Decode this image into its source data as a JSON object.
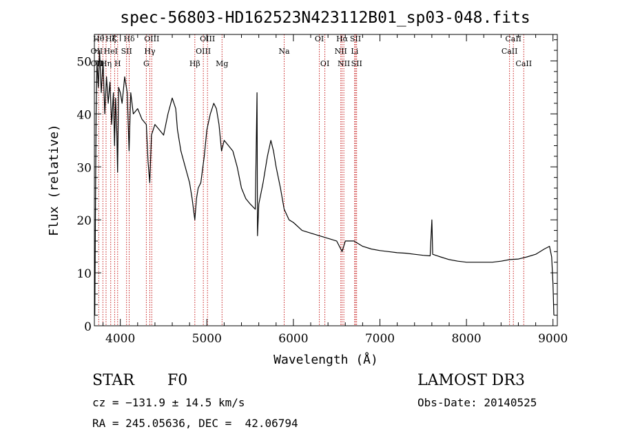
{
  "chart_data": {
    "type": "line",
    "title": "spec-56803-HD162523N423112B01_sp03-048.fits",
    "xlabel": "Wavelength (Å)",
    "ylabel": "Flux (relative)",
    "xlim": [
      3700,
      9050
    ],
    "ylim": [
      0,
      55
    ],
    "xticks": [
      4000,
      5000,
      6000,
      7000,
      8000,
      9000
    ],
    "yticks": [
      0,
      10,
      20,
      30,
      40,
      50
    ],
    "grid": false,
    "series": [
      {
        "points": [
          [
            3705,
            2
          ],
          [
            3712,
            20
          ],
          [
            3720,
            40
          ],
          [
            3730,
            50
          ],
          [
            3745,
            45
          ],
          [
            3760,
            52
          ],
          [
            3780,
            44
          ],
          [
            3800,
            50
          ],
          [
            3820,
            40
          ],
          [
            3840,
            47
          ],
          [
            3860,
            42
          ],
          [
            3880,
            46
          ],
          [
            3900,
            38
          ],
          [
            3920,
            44
          ],
          [
            3933,
            34
          ],
          [
            3945,
            43
          ],
          [
            3960,
            36
          ],
          [
            3968,
            29
          ],
          [
            3980,
            45
          ],
          [
            4000,
            44
          ],
          [
            4020,
            42
          ],
          [
            4050,
            47
          ],
          [
            4080,
            44
          ],
          [
            4101,
            33
          ],
          [
            4120,
            44
          ],
          [
            4150,
            40
          ],
          [
            4200,
            41
          ],
          [
            4250,
            39
          ],
          [
            4300,
            38
          ],
          [
            4320,
            31
          ],
          [
            4340,
            27
          ],
          [
            4360,
            36
          ],
          [
            4400,
            38
          ],
          [
            4450,
            37
          ],
          [
            4500,
            36
          ],
          [
            4550,
            40
          ],
          [
            4600,
            43
          ],
          [
            4640,
            41
          ],
          [
            4660,
            37
          ],
          [
            4700,
            33
          ],
          [
            4750,
            30
          ],
          [
            4800,
            27
          ],
          [
            4830,
            24
          ],
          [
            4861,
            20
          ],
          [
            4880,
            24
          ],
          [
            4900,
            26
          ],
          [
            4930,
            27
          ],
          [
            4970,
            32
          ],
          [
            5000,
            37
          ],
          [
            5040,
            40
          ],
          [
            5080,
            42
          ],
          [
            5110,
            41
          ],
          [
            5140,
            38
          ],
          [
            5170,
            33
          ],
          [
            5200,
            35
          ],
          [
            5250,
            34
          ],
          [
            5300,
            33
          ],
          [
            5350,
            30
          ],
          [
            5400,
            26
          ],
          [
            5450,
            24
          ],
          [
            5500,
            23
          ],
          [
            5560,
            22
          ],
          [
            5580,
            44
          ],
          [
            5585,
            17
          ],
          [
            5600,
            23
          ],
          [
            5650,
            27
          ],
          [
            5700,
            32
          ],
          [
            5740,
            35
          ],
          [
            5770,
            33
          ],
          [
            5800,
            30
          ],
          [
            5850,
            26
          ],
          [
            5893,
            22
          ],
          [
            5950,
            20
          ],
          [
            6000,
            19.5
          ],
          [
            6100,
            18
          ],
          [
            6200,
            17.5
          ],
          [
            6300,
            17
          ],
          [
            6400,
            16.5
          ],
          [
            6500,
            16
          ],
          [
            6563,
            14
          ],
          [
            6600,
            16
          ],
          [
            6700,
            16
          ],
          [
            6800,
            15
          ],
          [
            6900,
            14.5
          ],
          [
            7000,
            14.2
          ],
          [
            7100,
            14
          ],
          [
            7200,
            13.8
          ],
          [
            7300,
            13.7
          ],
          [
            7400,
            13.5
          ],
          [
            7500,
            13.3
          ],
          [
            7580,
            13.2
          ],
          [
            7600,
            20
          ],
          [
            7610,
            13.5
          ],
          [
            7700,
            13
          ],
          [
            7800,
            12.5
          ],
          [
            7900,
            12.2
          ],
          [
            8000,
            12
          ],
          [
            8100,
            12
          ],
          [
            8200,
            12
          ],
          [
            8300,
            12
          ],
          [
            8400,
            12.2
          ],
          [
            8500,
            12.5
          ],
          [
            8600,
            12.6
          ],
          [
            8700,
            13
          ],
          [
            8800,
            13.5
          ],
          [
            8900,
            14.5
          ],
          [
            8960,
            15
          ],
          [
            8985,
            13
          ],
          [
            9000,
            8
          ],
          [
            9010,
            2
          ]
        ]
      }
    ],
    "lines": [
      {
        "wl": 3750,
        "labels": [
          "Hθ",
          "OII",
          "Hη"
        ]
      },
      {
        "wl": 3798,
        "labels": [
          "Hθ",
          "OII",
          "Hη"
        ]
      },
      {
        "wl": 3835,
        "labels": [
          "Hθ",
          "OII",
          "Hη"
        ]
      },
      {
        "wl": 3889,
        "labels": [
          "HeI"
        ]
      },
      {
        "wl": 3934,
        "labels": [
          "K"
        ]
      },
      {
        "wl": 3969,
        "labels": [
          "H"
        ]
      },
      {
        "wl": 4072,
        "labels": [
          "SII"
        ]
      },
      {
        "wl": 4102,
        "labels": [
          "Hδ"
        ]
      },
      {
        "wl": 4300,
        "labels": [
          "G"
        ]
      },
      {
        "wl": 4341,
        "labels": [
          "Hγ"
        ]
      },
      {
        "wl": 4363,
        "labels": [
          "OIII"
        ]
      },
      {
        "wl": 4861,
        "labels": [
          "Hβ"
        ]
      },
      {
        "wl": 4959,
        "labels": [
          "OIII"
        ]
      },
      {
        "wl": 5007,
        "labels": [
          "OIII"
        ]
      },
      {
        "wl": 5175,
        "labels": [
          "Mg"
        ]
      },
      {
        "wl": 5893,
        "labels": [
          "Na"
        ]
      },
      {
        "wl": 6300,
        "labels": [
          "OI"
        ]
      },
      {
        "wl": 6364,
        "labels": [
          "OI"
        ]
      },
      {
        "wl": 6548,
        "labels": [
          "NII"
        ]
      },
      {
        "wl": 6563,
        "labels": [
          "Hα"
        ]
      },
      {
        "wl": 6583,
        "labels": [
          "NII"
        ]
      },
      {
        "wl": 6708,
        "labels": [
          "Li"
        ]
      },
      {
        "wl": 6717,
        "labels": [
          "SII"
        ]
      },
      {
        "wl": 6731,
        "labels": [
          "SII"
        ]
      },
      {
        "wl": 8498,
        "labels": [
          "CaII"
        ]
      },
      {
        "wl": 8542,
        "labels": [
          "CaII"
        ]
      },
      {
        "wl": 8662,
        "labels": [
          "CaII"
        ]
      }
    ],
    "line_labels": [
      {
        "text": "Hθ",
        "wl": 3750,
        "row": 0
      },
      {
        "text": "Hζ",
        "wl": 3889,
        "row": 0
      },
      {
        "text": "K",
        "wl": 3934,
        "row": 0
      },
      {
        "text": "Hδ",
        "wl": 4102,
        "row": 0
      },
      {
        "text": "OIII",
        "wl": 4363,
        "row": 0
      },
      {
        "text": "OIII",
        "wl": 5007,
        "row": 0
      },
      {
        "text": "OI",
        "wl": 6300,
        "row": 0
      },
      {
        "text": "Hα",
        "wl": 6563,
        "row": 0
      },
      {
        "text": "SII",
        "wl": 6717,
        "row": 0
      },
      {
        "text": "CaII",
        "wl": 8542,
        "row": 0
      },
      {
        "text": "OII",
        "wl": 3727,
        "row": 1
      },
      {
        "text": "HeI",
        "wl": 3889,
        "row": 1
      },
      {
        "text": "SII",
        "wl": 4072,
        "row": 1
      },
      {
        "text": "Hγ",
        "wl": 4341,
        "row": 1
      },
      {
        "text": "OIII",
        "wl": 4959,
        "row": 1
      },
      {
        "text": "NII",
        "wl": 6548,
        "row": 1
      },
      {
        "text": "Li",
        "wl": 6708,
        "row": 1
      },
      {
        "text": "CaII",
        "wl": 8498,
        "row": 1
      },
      {
        "text": "OII",
        "wl": 3727,
        "row": 2
      },
      {
        "text": "Hη",
        "wl": 3835,
        "row": 2
      },
      {
        "text": "H",
        "wl": 3969,
        "row": 2
      },
      {
        "text": "G",
        "wl": 4300,
        "row": 2
      },
      {
        "text": "Hβ",
        "wl": 4861,
        "row": 2
      },
      {
        "text": "Mg",
        "wl": 5175,
        "row": 2
      },
      {
        "text": "Na",
        "wl": 5893,
        "row": 1.5
      },
      {
        "text": "OI",
        "wl": 6364,
        "row": 2
      },
      {
        "text": "NII",
        "wl": 6583,
        "row": 2
      },
      {
        "text": "SII",
        "wl": 6731,
        "row": 2
      },
      {
        "text": "CaII",
        "wl": 8662,
        "row": 2
      }
    ]
  },
  "info": {
    "object_class": "STAR",
    "subclass": "F0",
    "survey": "LAMOST DR3",
    "velocity": "cz = −131.9 ± 14.5 km/s",
    "obs_date": "Obs-Date: 20140525",
    "coords": "RA = 245.05636, DEC =  42.06794"
  }
}
